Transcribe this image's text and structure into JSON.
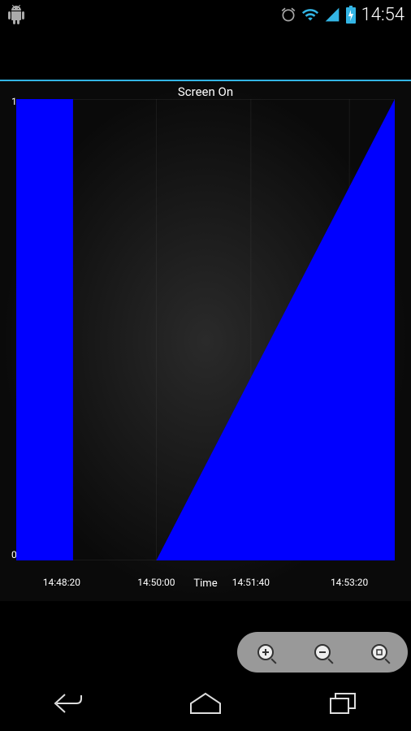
{
  "status_bar": {
    "time": "14:54",
    "icons": [
      "android-debug",
      "alarm",
      "wifi",
      "signal",
      "battery"
    ]
  },
  "chart": {
    "type": "area",
    "title": "Screen On",
    "x_axis_label": "Time",
    "y_axis": {
      "min": 0,
      "max": 1,
      "labels": [
        "0",
        "1"
      ]
    },
    "x_axis": {
      "tick_labels": [
        "14:48:20",
        "14:50:00",
        "14:51:40",
        "14:53:20"
      ],
      "tick_positions_pct": [
        12,
        37,
        62,
        88
      ],
      "gridline_positions_pct": [
        0,
        12,
        37,
        62,
        88,
        100
      ]
    },
    "series": [
      {
        "name": "Screen On",
        "color": "#0000ff",
        "fill_color": "#0000ff",
        "points_x_pct": [
          0,
          0,
          15,
          15,
          37,
          100,
          100
        ],
        "points_y": [
          0,
          1,
          1,
          0,
          0,
          1,
          0
        ]
      }
    ],
    "background_gradient": [
      "#2a2a2a",
      "#0a0a0a"
    ],
    "grid_color": "#555555",
    "text_color": "#ffffff",
    "title_fontsize": 15,
    "label_fontsize": 12
  },
  "legend": {
    "items": [
      {
        "label": "Screen On",
        "color": "#0000ff"
      }
    ],
    "text_color": "#33b5e5"
  },
  "zoom_controls": {
    "buttons": [
      "zoom-in",
      "zoom-out",
      "zoom-reset"
    ]
  },
  "nav_bar": {
    "buttons": [
      "back",
      "home",
      "recent"
    ]
  }
}
